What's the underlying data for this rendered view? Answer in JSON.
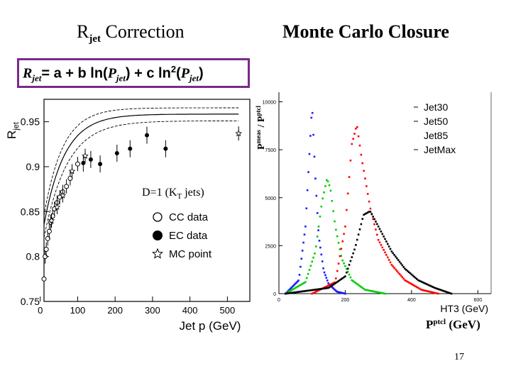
{
  "slide": {
    "title_left": "R",
    "title_left_sub": "jet",
    "title_left_rest": " Correction",
    "title_right": "Monte Carlo Closure",
    "formula_parts": {
      "r": "R",
      "jet": "jet",
      "eq": "= a + b ln(",
      "p": "P",
      "mid": ") + c ln",
      "two": "2",
      "open": "(",
      "close": ")"
    },
    "page_number": "17"
  },
  "colors": {
    "formula_border": "#7a2a8a",
    "jet30": "#1a1aff",
    "jet50": "#00cc00",
    "jet85": "#ff0000",
    "jetmax": "#000000"
  },
  "chart_data": [
    {
      "type": "scatter",
      "title": "",
      "xlabel": "Jet p (GeV)",
      "ylabel": "R_jet",
      "xlim": [
        0,
        560
      ],
      "ylim": [
        0.75,
        0.975
      ],
      "xticks": [
        "0",
        "100",
        "200",
        "300",
        "400",
        "500"
      ],
      "yticks": [
        "0.75",
        "0.8",
        "0.85",
        "0.9",
        "0.95"
      ],
      "annotation": "D=1 (KT jets)",
      "legend": [
        "CC data",
        "EC data",
        "MC point"
      ],
      "legend_position": "lower-right",
      "series": [
        {
          "name": "CC data",
          "marker": "open-circle",
          "x": [
            10,
            13,
            16,
            20,
            24,
            28,
            33,
            38,
            45,
            52,
            60,
            70,
            80,
            100
          ],
          "y": [
            0.775,
            0.8,
            0.808,
            0.82,
            0.828,
            0.838,
            0.845,
            0.853,
            0.86,
            0.866,
            0.872,
            0.878,
            0.887,
            0.903
          ]
        },
        {
          "name": "EC data",
          "marker": "filled-circle",
          "x": [
            115,
            135,
            160,
            205,
            240,
            285,
            335
          ],
          "y": [
            0.904,
            0.908,
            0.903,
            0.915,
            0.92,
            0.935,
            0.92
          ]
        },
        {
          "name": "MC point",
          "marker": "star",
          "x": [
            30,
            45,
            60,
            85,
            120,
            530
          ],
          "y": [
            0.84,
            0.855,
            0.868,
            0.895,
            0.912,
            0.937
          ]
        }
      ],
      "fit_curves": [
        "fit",
        "upper band",
        "lower band"
      ]
    },
    {
      "type": "line",
      "title": "",
      "xlabel": "HT3 (GeV)",
      "xlabel_overlay": "P",
      "xlabel_overlay_sup": "ptcl",
      "xlabel_overlay_unit": " (GeV)",
      "ylabel": "P",
      "ylabel_sup1": "meas",
      "ylabel_sep": " / P",
      "ylabel_sup2": "ptcl",
      "xlim": [
        0,
        640
      ],
      "ylim": [
        0,
        10500
      ],
      "xticks": [
        "0",
        "200",
        "400",
        "600"
      ],
      "yticks": [
        "0",
        "2500",
        "5000",
        "7500",
        "10000"
      ],
      "legend": [
        "Jet30",
        "Jet50",
        "Jet85",
        "JetMax"
      ],
      "legend_position": "top-right",
      "series": [
        {
          "name": "Jet30",
          "x": [
            20,
            60,
            80,
            100,
            110,
            120,
            135,
            150,
            175,
            200
          ],
          "y": [
            0,
            700,
            3500,
            9800,
            6000,
            3000,
            1200,
            500,
            100,
            0
          ]
        },
        {
          "name": "Jet50",
          "x": [
            20,
            80,
            110,
            130,
            145,
            155,
            170,
            190,
            220,
            260,
            320
          ],
          "y": [
            0,
            600,
            2200,
            4800,
            6000,
            5500,
            3500,
            1800,
            700,
            200,
            0
          ]
        },
        {
          "name": "Jet85",
          "x": [
            100,
            170,
            200,
            220,
            235,
            250,
            275,
            300,
            340,
            380,
            430,
            480
          ],
          "y": [
            0,
            600,
            3500,
            7800,
            8800,
            7000,
            4500,
            2800,
            1500,
            700,
            200,
            0
          ]
        },
        {
          "name": "JetMax",
          "x": [
            20,
            150,
            200,
            230,
            255,
            275,
            300,
            340,
            380,
            420,
            470,
            520
          ],
          "y": [
            0,
            300,
            900,
            2400,
            4100,
            4300,
            3500,
            2200,
            1300,
            700,
            300,
            0
          ]
        }
      ]
    }
  ]
}
